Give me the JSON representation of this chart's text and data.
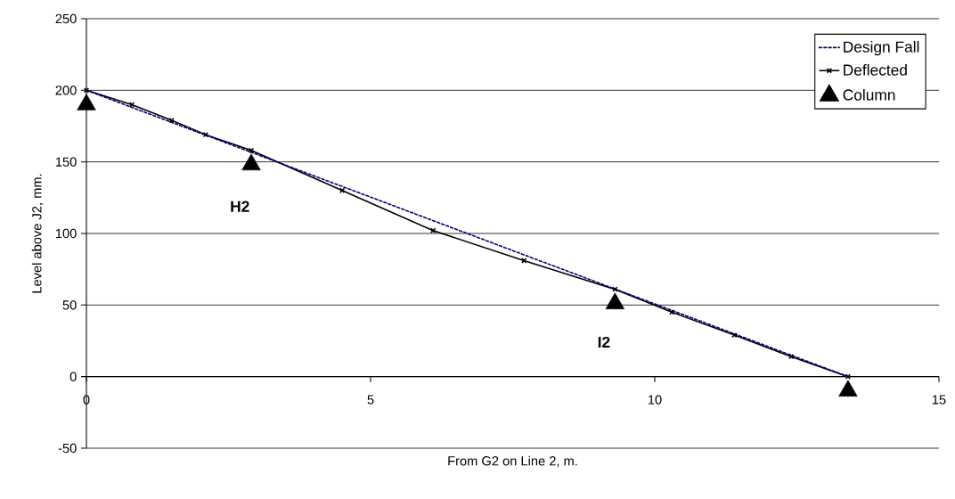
{
  "chart_data": {
    "type": "line",
    "xlabel": "From G2 on Line 2,  m.",
    "ylabel": "Level above J2, mm.",
    "xlim": [
      0,
      15
    ],
    "xticks": [
      0,
      5,
      10,
      15
    ],
    "ylim": [
      -50,
      250
    ],
    "yticks": [
      -50,
      0,
      50,
      100,
      150,
      200,
      250
    ],
    "grid": "y",
    "legend": "top right",
    "series": [
      {
        "name": "Design Fall",
        "color": "#000080",
        "line_style": "dotted",
        "marker": "none",
        "x": [
          0,
          13.4
        ],
        "values": [
          200,
          0
        ]
      },
      {
        "name": "Deflected",
        "color": "#000000",
        "line_style": "solid",
        "marker": "cross",
        "x": [
          0,
          0.8,
          1.5,
          2.1,
          2.9,
          4.5,
          6.1,
          7.7,
          9.3,
          10.3,
          11.4,
          12.4,
          13.4
        ],
        "values": [
          200,
          190,
          179,
          169,
          158,
          130,
          102,
          81,
          61,
          45,
          29,
          14,
          0
        ]
      },
      {
        "name": "Column",
        "type": "scatter",
        "color": "#000000",
        "marker": "triangle",
        "x": [
          0,
          2.9,
          9.3,
          13.4
        ],
        "values": [
          190,
          148,
          51,
          -10
        ]
      }
    ],
    "annotations": [
      "H2",
      "I2"
    ]
  }
}
